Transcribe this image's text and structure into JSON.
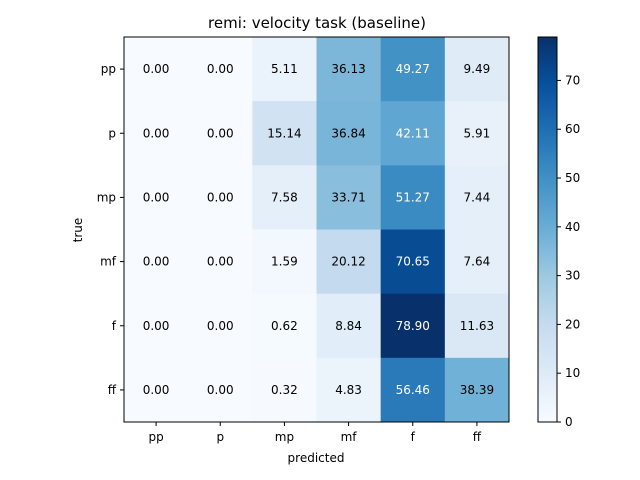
{
  "chart_data": {
    "type": "heatmap",
    "title": "remi: velocity task (baseline)",
    "xlabel": "predicted",
    "ylabel": "true",
    "x_categories": [
      "pp",
      "p",
      "mp",
      "mf",
      "f",
      "ff"
    ],
    "y_categories": [
      "pp",
      "p",
      "mp",
      "mf",
      "f",
      "ff"
    ],
    "values": [
      [
        0.0,
        0.0,
        5.11,
        36.13,
        49.27,
        9.49
      ],
      [
        0.0,
        0.0,
        15.14,
        36.84,
        42.11,
        5.91
      ],
      [
        0.0,
        0.0,
        7.58,
        33.71,
        51.27,
        7.44
      ],
      [
        0.0,
        0.0,
        1.59,
        20.12,
        70.65,
        7.64
      ],
      [
        0.0,
        0.0,
        0.62,
        8.84,
        78.9,
        11.63
      ],
      [
        0.0,
        0.0,
        0.32,
        4.83,
        56.46,
        38.39
      ]
    ],
    "colormap": "Blues",
    "vmin": 0,
    "vmax": 78.9,
    "colorbar_ticks": [
      0,
      10,
      20,
      30,
      40,
      50,
      60,
      70
    ],
    "grid": false
  }
}
